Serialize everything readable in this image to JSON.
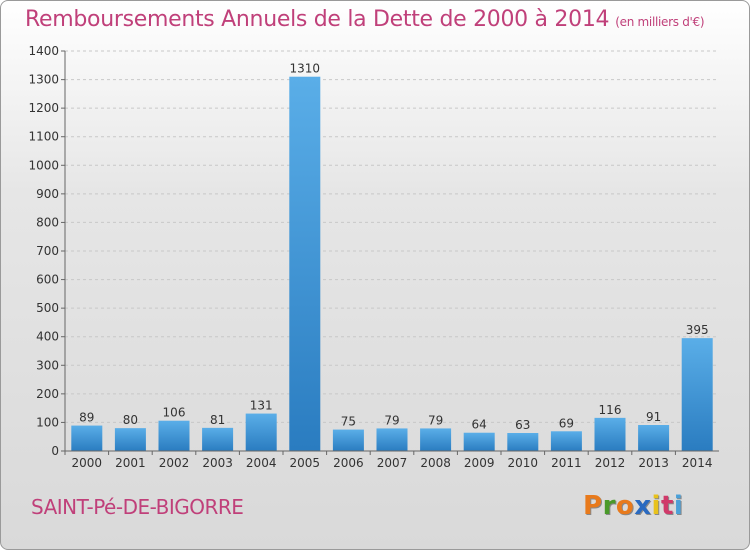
{
  "header": {
    "title": "Remboursements Annuels de la Dette de 2000 à 2014",
    "unit": "(en milliers d'€)"
  },
  "footer": {
    "commune": "SAINT-Pé-DE-BIGORRE",
    "logo_text": "Proxiti"
  },
  "colors": {
    "title": "#c0407a",
    "bar_top": "#5aaee8",
    "bar_bottom": "#2a7cc0",
    "logo_letters": [
      "#e87a1c",
      "#4a9a2a",
      "#e87a1c",
      "#2a6ac0",
      "#e8c21c",
      "#d03a6a",
      "#4aa0d8"
    ]
  },
  "chart_data": {
    "type": "bar",
    "title": "Remboursements Annuels de la Dette de 2000 à 2014",
    "xlabel": "",
    "ylabel": "",
    "ylim": [
      0,
      1400
    ],
    "yticks": [
      0,
      100,
      200,
      300,
      400,
      500,
      600,
      700,
      800,
      900,
      1000,
      1100,
      1200,
      1300,
      1400
    ],
    "grid": true,
    "categories": [
      "2000",
      "2001",
      "2002",
      "2003",
      "2004",
      "2005",
      "2006",
      "2007",
      "2008",
      "2009",
      "2010",
      "2011",
      "2012",
      "2013",
      "2014"
    ],
    "values": [
      89,
      80,
      106,
      81,
      131,
      1310,
      75,
      79,
      79,
      64,
      63,
      69,
      116,
      91,
      395
    ]
  }
}
